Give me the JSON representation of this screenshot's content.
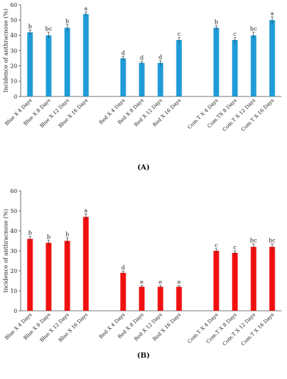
{
  "chart_data": [
    {
      "type": "bar",
      "panel_label": "(A)",
      "ylabel": "Incidence of anthracnose (%)",
      "ylim": [
        0,
        60
      ],
      "yticks": [
        0,
        10,
        20,
        30,
        40,
        50,
        60
      ],
      "grid": false,
      "bar_color": "#1f9bd7",
      "categories": [
        "Blue X 4 Days",
        "Blue X 8 Days",
        "Blue X 12 Days",
        "Blue X 16 Days",
        "",
        "Red X 4 Days",
        "Red X 8 Days",
        "Red X 12 Days",
        "Red X 16 Days",
        "",
        "Com.T X 4 Days",
        "Com.TX 8 Days",
        "Com.T X 12 Days",
        "Com.T X 16 Days"
      ],
      "values": [
        42,
        40,
        45,
        54,
        null,
        25,
        22,
        22,
        37,
        null,
        45,
        37,
        40,
        50
      ],
      "errors": [
        1.5,
        2,
        2,
        1.2,
        null,
        1.2,
        1,
        1.5,
        1.5,
        null,
        1.5,
        1.5,
        2,
        2
      ],
      "letters": [
        "b",
        "bc",
        "b",
        "a",
        "",
        "d",
        "d",
        "d",
        "c",
        "",
        "b",
        "c",
        "bc",
        "a"
      ]
    },
    {
      "type": "bar",
      "panel_label": "(B)",
      "ylabel": "Incidence of anthracnose (%)",
      "ylim": [
        0,
        60
      ],
      "yticks": [
        0,
        10,
        20,
        30,
        40,
        50,
        60
      ],
      "grid": false,
      "bar_color": "#f01010",
      "categories": [
        "Blue X 4 Days",
        "Blue X 8 Days",
        "Blue X 12 Days",
        "Blue X 16 Days",
        "",
        "Red X 4 Days",
        "Red X 8 Days",
        "Red X 12 Days",
        "Red X 16 Days",
        "",
        "Com.T X 4 Days",
        "Com.T X 8 Days",
        "Com.T X 12 Days",
        "Com.T X 16 Days"
      ],
      "values": [
        36,
        34,
        35,
        47,
        null,
        19,
        12,
        12,
        12,
        null,
        30,
        29,
        32,
        32
      ],
      "errors": [
        1.2,
        1.2,
        1.5,
        1.5,
        null,
        0.8,
        0.6,
        0.6,
        0.6,
        null,
        1,
        1,
        1.5,
        1.5
      ],
      "letters": [
        "b",
        "b",
        "b",
        "a",
        "",
        "d",
        "e",
        "e",
        "e",
        "",
        "c",
        "c",
        "bc",
        "bc"
      ]
    }
  ]
}
